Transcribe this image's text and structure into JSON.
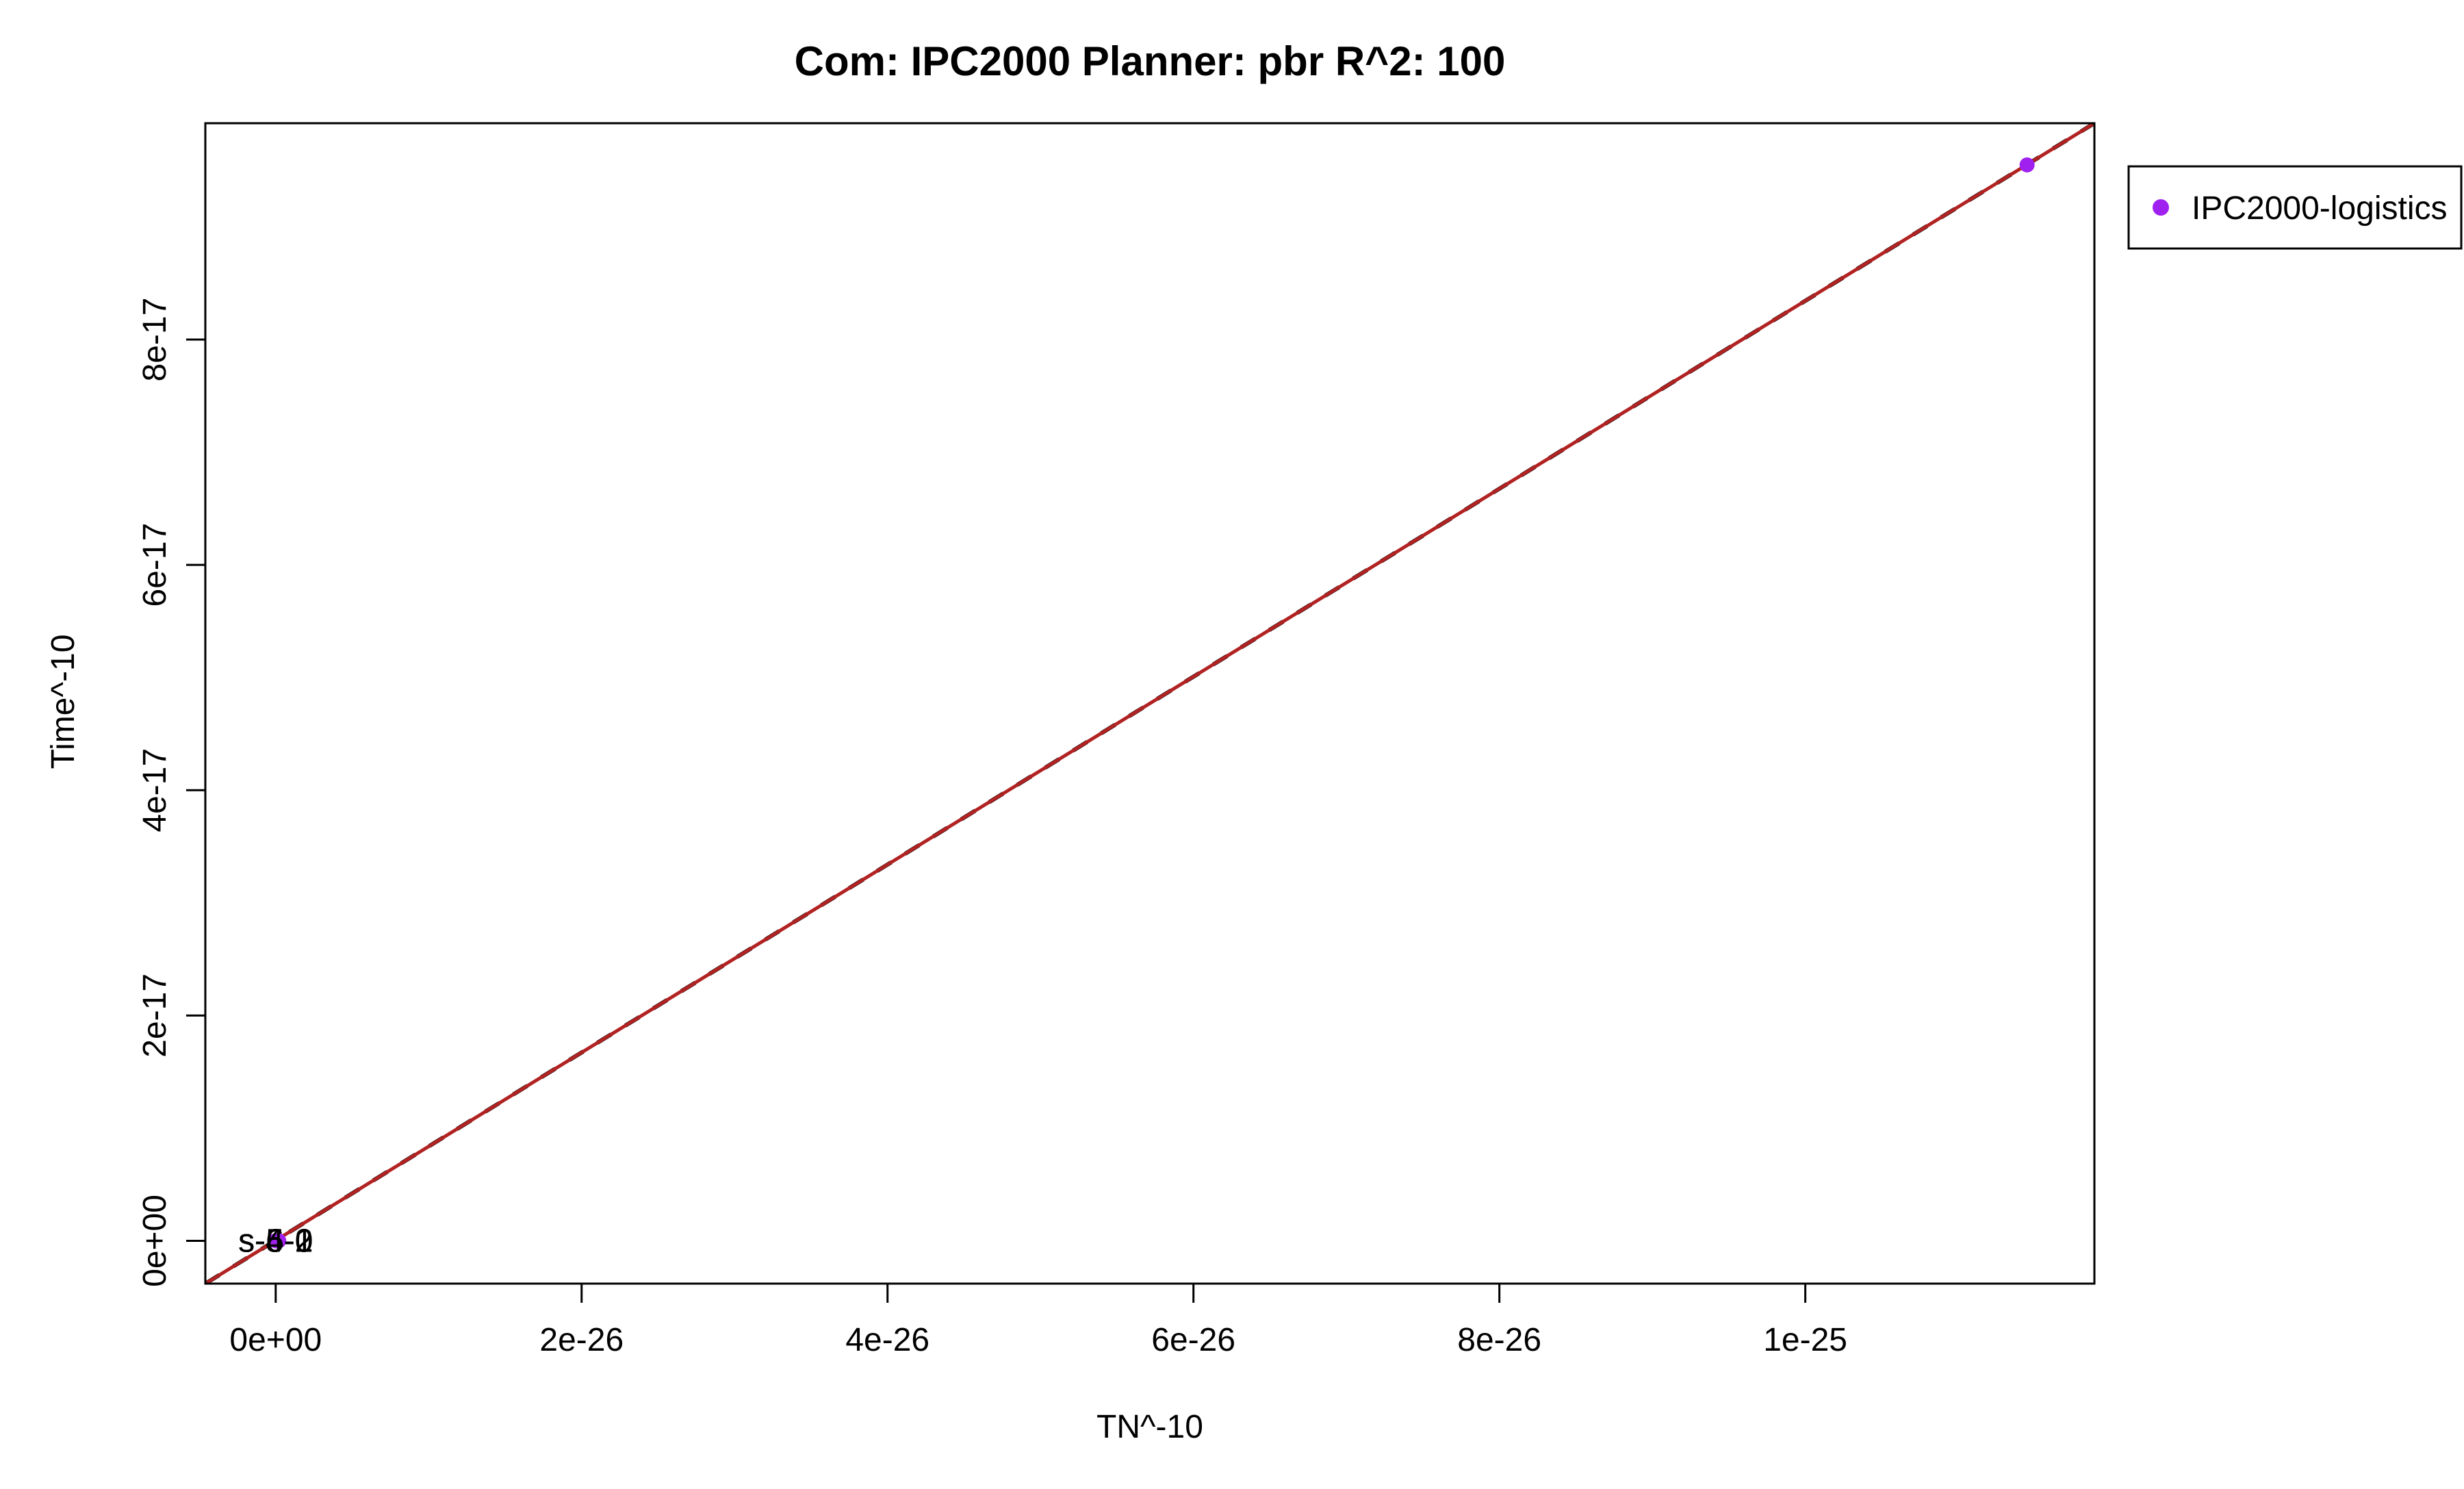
{
  "chart_data": {
    "type": "scatter",
    "title": "Com: IPC2000 Planner: pbr R^2: 100",
    "xlabel": "TN^-10",
    "ylabel": "Time^-10",
    "xlim": [
      -4.6e-27,
      1.189e-25
    ],
    "ylim": [
      -3.8e-18,
      9.92e-17
    ],
    "x_ticks": [
      {
        "value": 0,
        "label": "0e+00"
      },
      {
        "value": 2e-26,
        "label": "2e-26"
      },
      {
        "value": 4e-26,
        "label": "4e-26"
      },
      {
        "value": 6e-26,
        "label": "6e-26"
      },
      {
        "value": 8e-26,
        "label": "8e-26"
      },
      {
        "value": 1e-25,
        "label": "1e-25"
      }
    ],
    "y_ticks": [
      {
        "value": 0,
        "label": "0e+00"
      },
      {
        "value": 2e-17,
        "label": "2e-17"
      },
      {
        "value": 4e-17,
        "label": "4e-17"
      },
      {
        "value": 6e-17,
        "label": "6e-17"
      },
      {
        "value": 8e-17,
        "label": "8e-17"
      }
    ],
    "grid": false,
    "legend": {
      "placement": "outside-top-right"
    },
    "series": [
      {
        "name": "IPC2000-logistics",
        "color": "#a020f0",
        "points": [
          {
            "x": 1.145e-25,
            "y": 9.55e-17
          },
          {
            "x": 0,
            "y": 0
          },
          {
            "x": 1e-28,
            "y": 0
          },
          {
            "x": 2e-28,
            "y": 0
          }
        ]
      }
    ],
    "point_labels": [
      {
        "text": "s-5-2",
        "x": 0,
        "y": 0
      },
      {
        "text": "s-6-0",
        "x": 0,
        "y": 0
      },
      {
        "text": "s-6-1",
        "x": 0,
        "y": 0
      },
      {
        "text": "s-4-0",
        "x": 0,
        "y": 0
      }
    ],
    "fit_lines": [
      {
        "style": "dashed",
        "color": "#000000",
        "from": [
          -4.6e-27,
          -3.8e-18
        ],
        "to": [
          1.189e-25,
          9.92e-17
        ]
      },
      {
        "style": "solid",
        "color": "#b22222",
        "from": [
          -4.6e-27,
          -3.8e-18
        ],
        "to": [
          1.189e-25,
          9.92e-17
        ]
      }
    ]
  }
}
